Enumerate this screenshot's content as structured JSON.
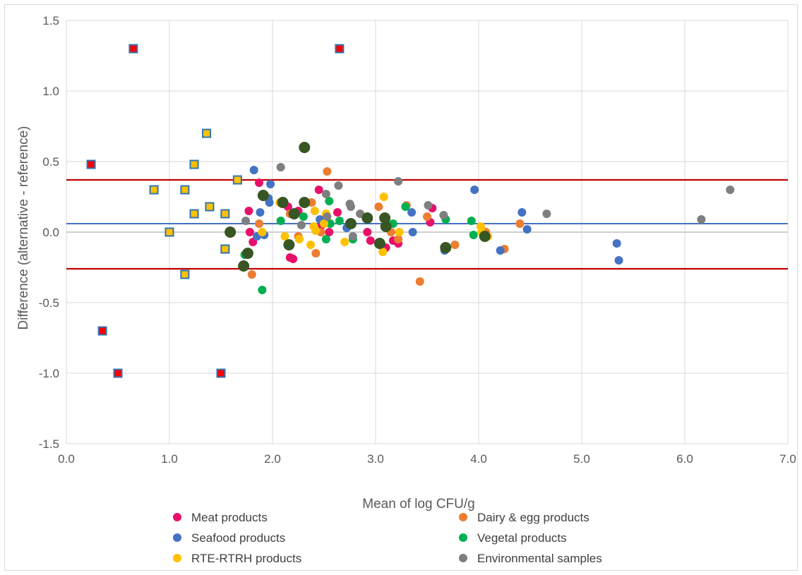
{
  "chart_data": {
    "type": "scatter",
    "title": "",
    "xlabel": "Mean of log CFU/g",
    "ylabel": "Difference (alternative - reference)",
    "xlim": [
      0.0,
      7.0
    ],
    "ylim": [
      -1.5,
      1.5
    ],
    "x_ticks": [
      "0.0",
      "1.0",
      "2.0",
      "3.0",
      "4.0",
      "5.0",
      "6.0",
      "7.0"
    ],
    "y_ticks": [
      "1.5",
      "1.0",
      "0.5",
      "0.0",
      "-0.5",
      "-1.0",
      "-1.5"
    ],
    "grid": "vertical and horizontal",
    "legend_position": "bottom",
    "reference_lines": [
      {
        "kind": "mean",
        "y": 0.06,
        "color": "#4472C4"
      },
      {
        "kind": "upper-limit",
        "y": 0.37,
        "color": "#C00000"
      },
      {
        "kind": "lower-limit",
        "y": -0.26,
        "color": "#C00000"
      }
    ],
    "series": [
      {
        "name": "Meat products",
        "color": "#E8106A",
        "marker": "circle",
        "points": [
          [
            1.77,
            0.15
          ],
          [
            1.78,
            0.0
          ],
          [
            1.81,
            -0.07
          ],
          [
            1.87,
            0.35
          ],
          [
            2.15,
            0.18
          ],
          [
            2.17,
            -0.18
          ],
          [
            2.2,
            -0.19
          ],
          [
            2.25,
            0.15
          ],
          [
            2.45,
            0.3
          ],
          [
            2.48,
            0.05
          ],
          [
            2.55,
            0.0
          ],
          [
            2.63,
            0.14
          ],
          [
            2.92,
            0.0
          ],
          [
            2.95,
            -0.06
          ],
          [
            3.1,
            -0.11
          ],
          [
            3.17,
            -0.06
          ],
          [
            3.22,
            -0.08
          ],
          [
            3.55,
            0.17
          ],
          [
            3.53,
            0.07
          ]
        ]
      },
      {
        "name": "Dairy & egg products",
        "color": "#ED7D31",
        "marker": "circle",
        "points": [
          [
            1.8,
            -0.3
          ],
          [
            1.87,
            0.06
          ],
          [
            2.17,
            0.13
          ],
          [
            2.25,
            -0.03
          ],
          [
            2.38,
            0.21
          ],
          [
            2.42,
            -0.15
          ],
          [
            2.47,
            0.0
          ],
          [
            2.53,
            0.43
          ],
          [
            3.03,
            0.18
          ],
          [
            3.15,
            0.0
          ],
          [
            3.22,
            -0.05
          ],
          [
            3.3,
            0.19
          ],
          [
            3.43,
            -0.35
          ],
          [
            3.5,
            0.11
          ],
          [
            3.77,
            -0.09
          ],
          [
            4.07,
            0.0
          ],
          [
            4.25,
            -0.12
          ],
          [
            4.4,
            0.06
          ]
        ]
      },
      {
        "name": "Seafood products",
        "color": "#4472C4",
        "marker": "circle",
        "points": [
          [
            1.82,
            0.44
          ],
          [
            1.85,
            -0.03
          ],
          [
            1.88,
            0.14
          ],
          [
            1.92,
            -0.02
          ],
          [
            1.96,
            0.24
          ],
          [
            1.98,
            0.34
          ],
          [
            1.97,
            0.21
          ],
          [
            2.46,
            0.09
          ],
          [
            2.72,
            0.03
          ],
          [
            3.35,
            0.14
          ],
          [
            3.36,
            0.0
          ],
          [
            3.67,
            -0.13
          ],
          [
            3.96,
            0.3
          ],
          [
            4.21,
            -0.13
          ],
          [
            4.42,
            0.14
          ],
          [
            4.47,
            0.02
          ],
          [
            5.34,
            -0.08
          ],
          [
            5.36,
            -0.2
          ]
        ]
      },
      {
        "name": "Vegetal products",
        "color": "#00B050",
        "marker": "circle",
        "points": [
          [
            1.73,
            -0.16
          ],
          [
            1.9,
            -0.41
          ],
          [
            2.08,
            0.08
          ],
          [
            2.3,
            0.11
          ],
          [
            2.52,
            -0.05
          ],
          [
            2.55,
            0.22
          ],
          [
            2.56,
            0.06
          ],
          [
            2.65,
            0.08
          ],
          [
            2.78,
            -0.05
          ],
          [
            3.1,
            0.1
          ],
          [
            3.17,
            0.06
          ],
          [
            3.29,
            0.18
          ],
          [
            3.68,
            0.09
          ],
          [
            3.93,
            0.08
          ],
          [
            3.95,
            -0.02
          ]
        ]
      },
      {
        "name": "RTE-RTRH products",
        "color": "#FFC000",
        "marker": "circle",
        "points": [
          [
            1.9,
            0.0
          ],
          [
            2.07,
            0.21
          ],
          [
            2.12,
            -0.03
          ],
          [
            2.26,
            -0.05
          ],
          [
            2.37,
            -0.09
          ],
          [
            2.4,
            0.04
          ],
          [
            2.41,
            0.15
          ],
          [
            2.42,
            0.01
          ],
          [
            2.5,
            0.06
          ],
          [
            2.52,
            0.13
          ],
          [
            2.7,
            -0.07
          ],
          [
            3.07,
            -0.14
          ],
          [
            3.08,
            0.25
          ],
          [
            3.23,
            0.0
          ],
          [
            4.02,
            0.04
          ],
          [
            4.03,
            0.0
          ],
          [
            4.09,
            -0.03
          ]
        ]
      },
      {
        "name": "Environmental samples",
        "color": "#7F7F7F",
        "marker": "circle",
        "points": [
          [
            1.74,
            0.08
          ],
          [
            2.08,
            0.46
          ],
          [
            2.28,
            0.05
          ],
          [
            2.52,
            0.27
          ],
          [
            2.53,
            0.11
          ],
          [
            2.64,
            0.33
          ],
          [
            2.75,
            0.2
          ],
          [
            2.76,
            0.18
          ],
          [
            2.78,
            -0.03
          ],
          [
            2.85,
            0.13
          ],
          [
            3.22,
            0.36
          ],
          [
            3.51,
            0.19
          ],
          [
            3.66,
            0.12
          ],
          [
            4.66,
            0.13
          ],
          [
            6.16,
            0.09
          ],
          [
            6.44,
            0.3
          ]
        ]
      },
      {
        "name": "",
        "color": "#375623",
        "marker": "large-circle",
        "points": [
          [
            1.59,
            0.0
          ],
          [
            1.72,
            -0.24
          ],
          [
            1.76,
            -0.15
          ],
          [
            1.91,
            0.26
          ],
          [
            2.1,
            0.21
          ],
          [
            2.16,
            -0.09
          ],
          [
            2.21,
            0.13
          ],
          [
            2.31,
            0.6
          ],
          [
            2.31,
            0.21
          ],
          [
            2.76,
            0.06
          ],
          [
            2.92,
            0.1
          ],
          [
            3.04,
            -0.08
          ],
          [
            3.09,
            0.1
          ],
          [
            3.1,
            0.04
          ],
          [
            3.68,
            -0.11
          ],
          [
            4.06,
            -0.03
          ]
        ]
      },
      {
        "name": "",
        "color": "#FFC000",
        "edge": "#2E75B6",
        "marker": "square",
        "points": [
          [
            0.85,
            0.3
          ],
          [
            1.0,
            0.0
          ],
          [
            1.15,
            0.3
          ],
          [
            1.15,
            -0.3
          ],
          [
            1.24,
            0.48
          ],
          [
            1.24,
            0.13
          ],
          [
            1.36,
            0.7
          ],
          [
            1.39,
            0.18
          ],
          [
            1.54,
            0.13
          ],
          [
            1.54,
            -0.12
          ],
          [
            1.66,
            0.37
          ]
        ]
      },
      {
        "name": "",
        "color": "#FF0000",
        "edge": "#2E75B6",
        "marker": "square",
        "points": [
          [
            0.24,
            0.48
          ],
          [
            0.35,
            -0.7
          ],
          [
            0.5,
            -1.0
          ],
          [
            0.65,
            1.3
          ],
          [
            1.5,
            -1.0
          ],
          [
            2.65,
            1.3
          ]
        ]
      }
    ]
  }
}
